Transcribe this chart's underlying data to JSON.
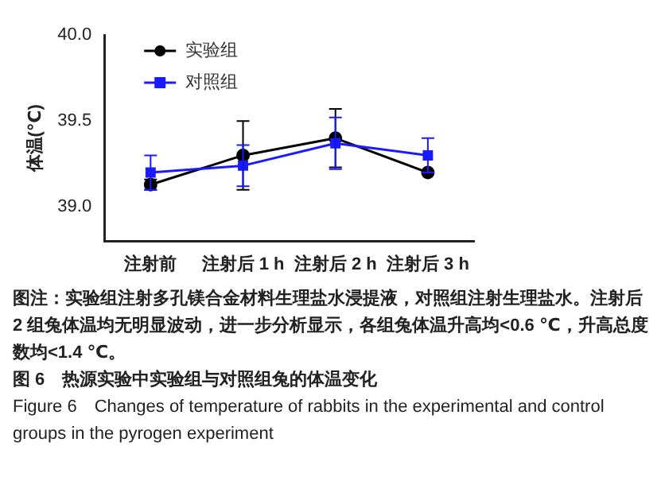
{
  "chart_data": {
    "type": "line",
    "ylabel": "体温(℃)",
    "categories": [
      "注射前",
      "注射后 1 h",
      "注射后 2 h",
      "注射后 3 h"
    ],
    "series": [
      {
        "name": "实验组",
        "color": "#000000",
        "marker": "circle",
        "values": [
          39.13,
          39.3,
          39.4,
          39.2
        ],
        "errors": [
          0.03,
          0.2,
          0.17,
          null
        ]
      },
      {
        "name": "对照组",
        "color": "#1a1aff",
        "marker": "square",
        "values": [
          39.2,
          39.24,
          39.37,
          39.3
        ],
        "errors": [
          0.1,
          0.12,
          0.15,
          0.1
        ]
      }
    ],
    "ylim": [
      38.8,
      40.0
    ],
    "yticks": [
      {
        "value": 39,
        "label": "39.0"
      },
      {
        "value": 39.5,
        "label": "39.5"
      },
      {
        "value": 40,
        "label": "40.0"
      }
    ],
    "grid": false,
    "legend": "top left",
    "line_style": "solid",
    "annotations": [
      "图注：实验组注射多孔镁合金材料生理盐水浸提液，对照组注射生理盐水。注射后 2 组兔体温均无明显波动，进一步分析显示，各组兔体温升高均<0.6 ℃，升高总度数均<1.4 ℃。",
      "图 6　热源实验中实验组与对照组兔的体温变化",
      "Figure 6　Changes of temperature of rabbits in the experimental and control groups in the pyrogen experiment"
    ]
  }
}
